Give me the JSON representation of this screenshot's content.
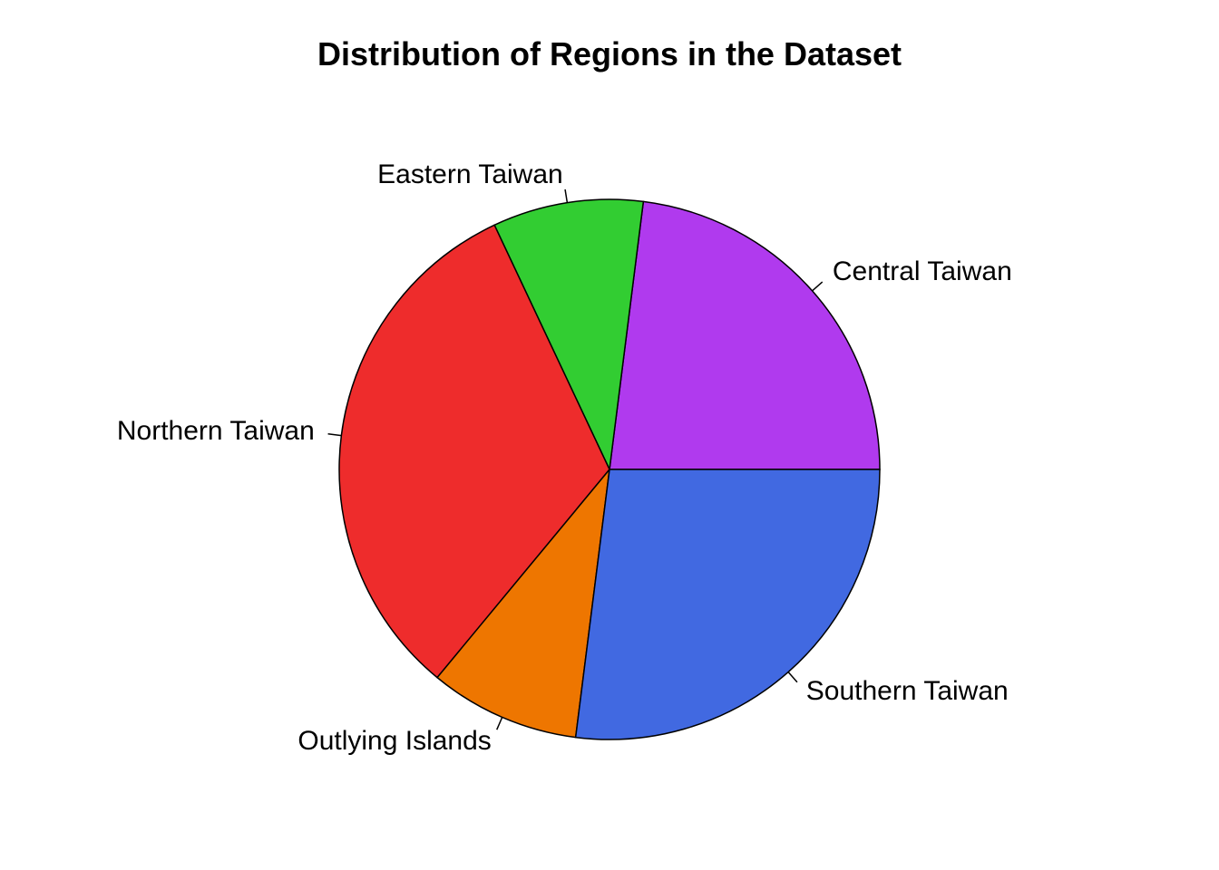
{
  "chart_data": {
    "type": "pie",
    "title": "Distribution of Regions in the Dataset",
    "slices": [
      {
        "label": "Central Taiwan",
        "value": 23,
        "color": "#B03AEE"
      },
      {
        "label": "Eastern Taiwan",
        "value": 9,
        "color": "#32CD32"
      },
      {
        "label": "Northern Taiwan",
        "value": 32,
        "color": "#EE2C2C"
      },
      {
        "label": "Outlying Islands",
        "value": 9,
        "color": "#EE7600"
      },
      {
        "label": "Southern Taiwan",
        "value": 27,
        "color": "#4169E1"
      }
    ],
    "start_angle_deg": 0,
    "direction": "counterclockwise",
    "legend": "none"
  }
}
